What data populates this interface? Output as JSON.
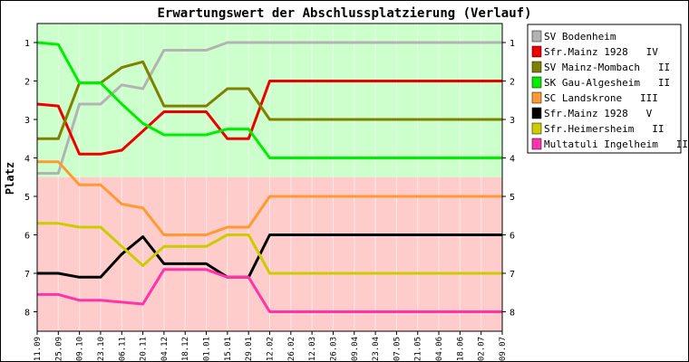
{
  "chart_data": {
    "type": "line",
    "title": "Erwartungswert der Abschlussplatzierung (Verlauf)",
    "ylabel": "Platz",
    "xlabel": "",
    "ylim": [
      1,
      8
    ],
    "y_reversed": true,
    "yticks": [
      "1",
      "2",
      "3",
      "4",
      "5",
      "6",
      "7",
      "8"
    ],
    "categories": [
      "11.09",
      "25.09",
      "09.10",
      "23.10",
      "06.11",
      "20.11",
      "04.12",
      "18.12",
      "01.01",
      "15.01",
      "29.01",
      "12.02",
      "26.02",
      "12.03",
      "26.03",
      "09.04",
      "23.04",
      "07.05",
      "21.05",
      "04.06",
      "18.06",
      "02.07",
      "09.07"
    ],
    "zones": [
      {
        "from": 0.5,
        "to": 4.5,
        "color": "#ccffcc"
      },
      {
        "from": 4.5,
        "to": 8.5,
        "color": "#ffcccc"
      }
    ],
    "legend_position": "right",
    "series": [
      {
        "name": "SV Bodenheim",
        "color": "#b3b3b3",
        "values": [
          4.4,
          4.4,
          2.6,
          2.6,
          2.1,
          2.2,
          1.2,
          1.2,
          1.2,
          1.0,
          1.0,
          1.0,
          1.0,
          1.0,
          1.0,
          1.0,
          1.0,
          1.0,
          1.0,
          1.0,
          1.0,
          1.0,
          1.0
        ]
      },
      {
        "name": "Sfr.Mainz 1928   IV",
        "color": "#ee0000",
        "values": [
          2.6,
          2.65,
          3.9,
          3.9,
          3.8,
          3.3,
          2.8,
          2.8,
          2.8,
          3.5,
          3.5,
          2.0,
          2.0,
          2.0,
          2.0,
          2.0,
          2.0,
          2.0,
          2.0,
          2.0,
          2.0,
          2.0,
          2.0
        ]
      },
      {
        "name": "SV Mainz-Mombach   II",
        "color": "#808000",
        "values": [
          3.5,
          3.5,
          2.05,
          2.05,
          1.65,
          1.5,
          2.65,
          2.65,
          2.65,
          2.2,
          2.2,
          3.0,
          3.0,
          3.0,
          3.0,
          3.0,
          3.0,
          3.0,
          3.0,
          3.0,
          3.0,
          3.0,
          3.0
        ]
      },
      {
        "name": "SK Gau-Algesheim   II",
        "color": "#00ee00",
        "values": [
          1.0,
          1.05,
          2.05,
          2.05,
          2.6,
          3.1,
          3.4,
          3.4,
          3.4,
          3.25,
          3.25,
          4.0,
          4.0,
          4.0,
          4.0,
          4.0,
          4.0,
          4.0,
          4.0,
          4.0,
          4.0,
          4.0,
          4.0
        ]
      },
      {
        "name": "SC Landskrone   III",
        "color": "#ff9933",
        "values": [
          4.1,
          4.1,
          4.7,
          4.7,
          5.2,
          5.3,
          6.0,
          6.0,
          6.0,
          5.8,
          5.8,
          5.0,
          5.0,
          5.0,
          5.0,
          5.0,
          5.0,
          5.0,
          5.0,
          5.0,
          5.0,
          5.0,
          5.0
        ]
      },
      {
        "name": "Sfr.Mainz 1928   V",
        "color": "#000000",
        "values": [
          7.0,
          7.0,
          7.1,
          7.1,
          6.5,
          6.05,
          6.75,
          6.75,
          6.75,
          7.1,
          7.1,
          6.0,
          6.0,
          6.0,
          6.0,
          6.0,
          6.0,
          6.0,
          6.0,
          6.0,
          6.0,
          6.0,
          6.0
        ]
      },
      {
        "name": "Sfr.Heimersheim   II",
        "color": "#cccc00",
        "values": [
          5.7,
          5.7,
          5.8,
          5.8,
          6.3,
          6.8,
          6.3,
          6.3,
          6.3,
          6.0,
          6.0,
          7.0,
          7.0,
          7.0,
          7.0,
          7.0,
          7.0,
          7.0,
          7.0,
          7.0,
          7.0,
          7.0,
          7.0
        ]
      },
      {
        "name": "Multatuli Ingelheim   III",
        "color": "#ff33aa",
        "values": [
          7.55,
          7.55,
          7.7,
          7.7,
          7.75,
          7.8,
          6.9,
          6.9,
          6.9,
          7.1,
          7.1,
          8.0,
          8.0,
          8.0,
          8.0,
          8.0,
          8.0,
          8.0,
          8.0,
          8.0,
          8.0,
          8.0,
          8.0
        ]
      }
    ]
  }
}
